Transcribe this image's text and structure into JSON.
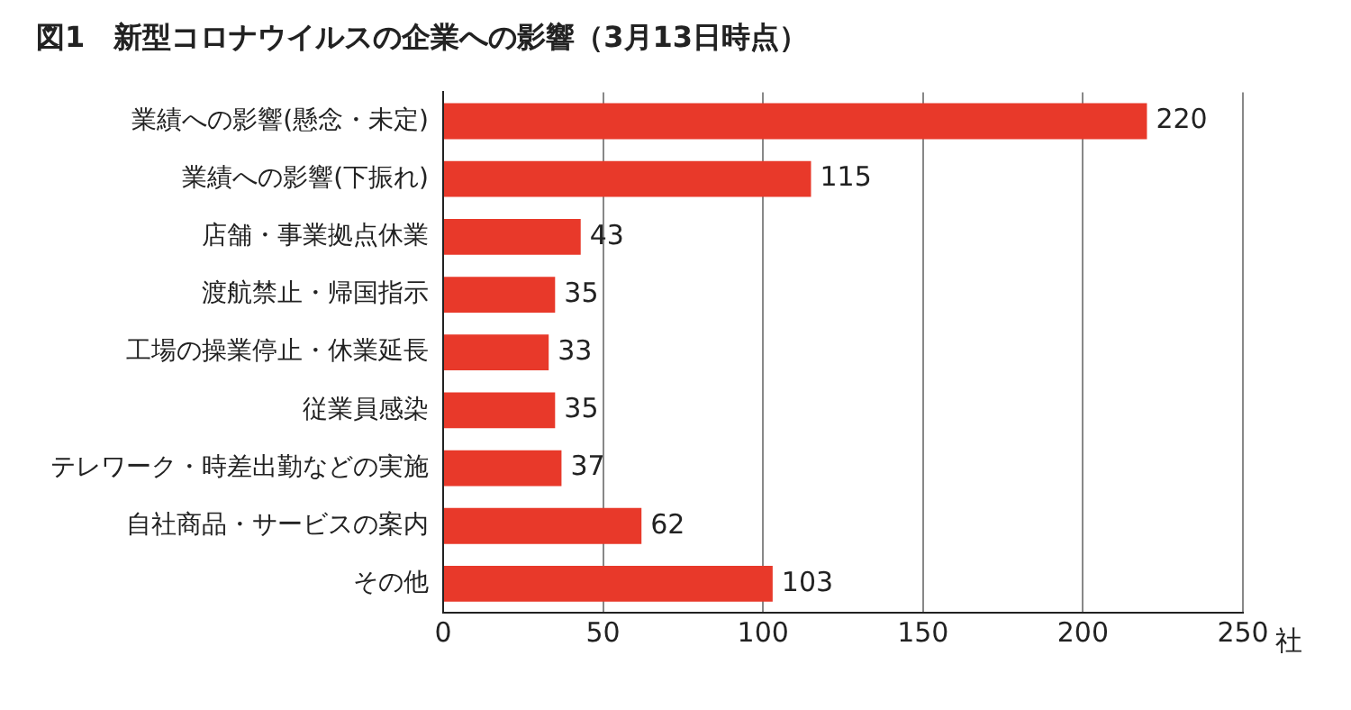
{
  "chart_data": {
    "type": "bar",
    "orientation": "horizontal",
    "title": "図1　新型コロナウイルスの企業への影響（3月13日時点）",
    "categories": [
      "業績への影響(懸念・未定)",
      "業績への影響(下振れ)",
      "店舗・事業拠点休業",
      "渡航禁止・帰国指示",
      "工場の操業停止・休業延長",
      "従業員感染",
      "テレワーク・時差出勤などの実施",
      "自社商品・サービスの案内",
      "その他"
    ],
    "values": [
      220,
      115,
      43,
      35,
      33,
      35,
      37,
      62,
      103
    ],
    "color": "#e8392a",
    "xlabel": "社",
    "xlim": [
      0,
      250
    ],
    "xticks": [
      0,
      50,
      100,
      150,
      200,
      250
    ],
    "grid": "x",
    "data_labels": true,
    "legend": false
  }
}
